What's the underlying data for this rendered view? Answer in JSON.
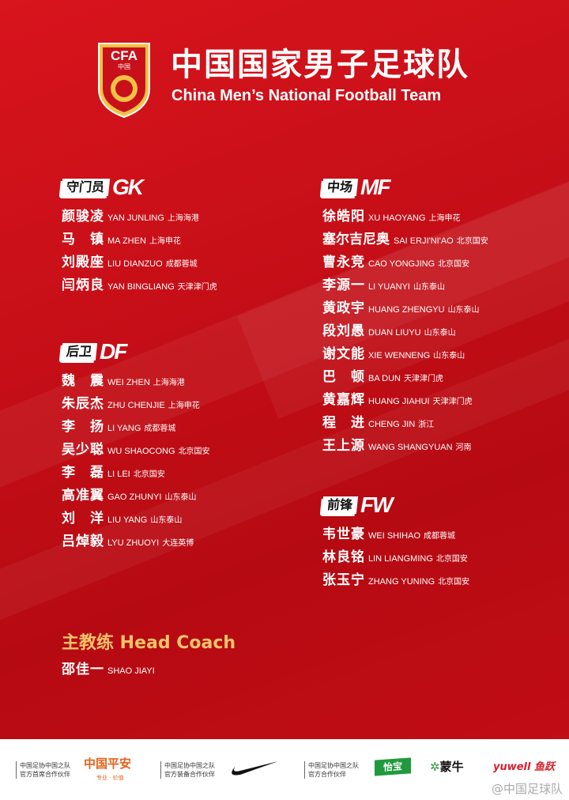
{
  "header": {
    "title_cn": "中国国家男子足球队",
    "title_en": "China Men’s National Football Team",
    "logo_text": "CFA 中国"
  },
  "colors": {
    "background": "#c80f18",
    "coach_title": "#f4c36a",
    "text": "#ffffff"
  },
  "sections": {
    "gk": {
      "cn": "守门员",
      "en": "GK",
      "players": [
        {
          "cn": "颜骏凌",
          "py": "YAN JUNLING",
          "club": "上海海港"
        },
        {
          "cn": "马镇",
          "py": "MA ZHEN",
          "club": "上海申花"
        },
        {
          "cn": "刘殿座",
          "py": "LIU DIANZUO",
          "club": "成都蓉城"
        },
        {
          "cn": "闫炳良",
          "py": "YAN BINGLIANG",
          "club": "天津津门虎"
        }
      ]
    },
    "df": {
      "cn": "后卫",
      "en": "DF",
      "players": [
        {
          "cn": "魏震",
          "py": "WEI ZHEN",
          "club": "上海海港"
        },
        {
          "cn": "朱辰杰",
          "py": "ZHU CHENJIE",
          "club": "上海申花"
        },
        {
          "cn": "李扬",
          "py": "LI YANG",
          "club": "成都蓉城"
        },
        {
          "cn": "吴少聪",
          "py": "WU SHAOCONG",
          "club": "北京国安"
        },
        {
          "cn": "李磊",
          "py": "LI LEI",
          "club": "北京国安"
        },
        {
          "cn": "高准翼",
          "py": "GAO ZHUNYI",
          "club": "山东泰山"
        },
        {
          "cn": "刘洋",
          "py": "LIU YANG",
          "club": "山东泰山"
        },
        {
          "cn": "吕焯毅",
          "py": "LYU ZHUOYI",
          "club": "大连英博"
        }
      ]
    },
    "mf": {
      "cn": "中场",
      "en": "MF",
      "players": [
        {
          "cn": "徐皓阳",
          "py": "XU HAOYANG",
          "club": "上海申花"
        },
        {
          "cn": "塞尔吉尼奥",
          "py": "SAI ERJI'NI'AO",
          "club": "北京国安"
        },
        {
          "cn": "曹永竞",
          "py": "CAO YONGJING",
          "club": "北京国安"
        },
        {
          "cn": "李源一",
          "py": "LI YUANYI",
          "club": "山东泰山"
        },
        {
          "cn": "黄政宇",
          "py": "HUANG ZHENGYU",
          "club": "山东泰山"
        },
        {
          "cn": "段刘愚",
          "py": "DUAN LIUYU",
          "club": "山东泰山"
        },
        {
          "cn": "谢文能",
          "py": "XIE WENNENG",
          "club": "山东泰山"
        },
        {
          "cn": "巴顿",
          "py": "BA DUN",
          "club": "天津津门虎"
        },
        {
          "cn": "黄嘉辉",
          "py": "HUANG JIAHUI",
          "club": "天津津门虎"
        },
        {
          "cn": "程进",
          "py": "CHENG JIN",
          "club": "浙江"
        },
        {
          "cn": "王上源",
          "py": "WANG SHANGYUAN",
          "club": "河南"
        }
      ]
    },
    "fw": {
      "cn": "前锋",
      "en": "FW",
      "players": [
        {
          "cn": "韦世豪",
          "py": "WEI SHIHAO",
          "club": "成都蓉城"
        },
        {
          "cn": "林良铭",
          "py": "LIN LIANGMING",
          "club": "北京国安"
        },
        {
          "cn": "张玉宁",
          "py": "ZHANG YUNING",
          "club": "北京国安"
        }
      ]
    }
  },
  "coach": {
    "title": "主教练 Head Coach",
    "cn": "邵佳一",
    "py": "SHAO JIAYI"
  },
  "footer": {
    "sponsor1": {
      "line1": "中国足协中国之队",
      "line2": "官方首席合作伙伴",
      "brand": "中国平安",
      "tagline": "专业 · 价值"
    },
    "sponsor2": {
      "line1": "中国足协中国之队",
      "line2": "官方装备合作伙伴",
      "brand": "Nike"
    },
    "sponsor3": {
      "line1": "中国足协中国之队",
      "line2": "官方合作伙伴",
      "brands": [
        "怡宝",
        "蒙牛",
        "yuwell 鱼跃"
      ]
    },
    "watermark": "@中国足球队"
  }
}
